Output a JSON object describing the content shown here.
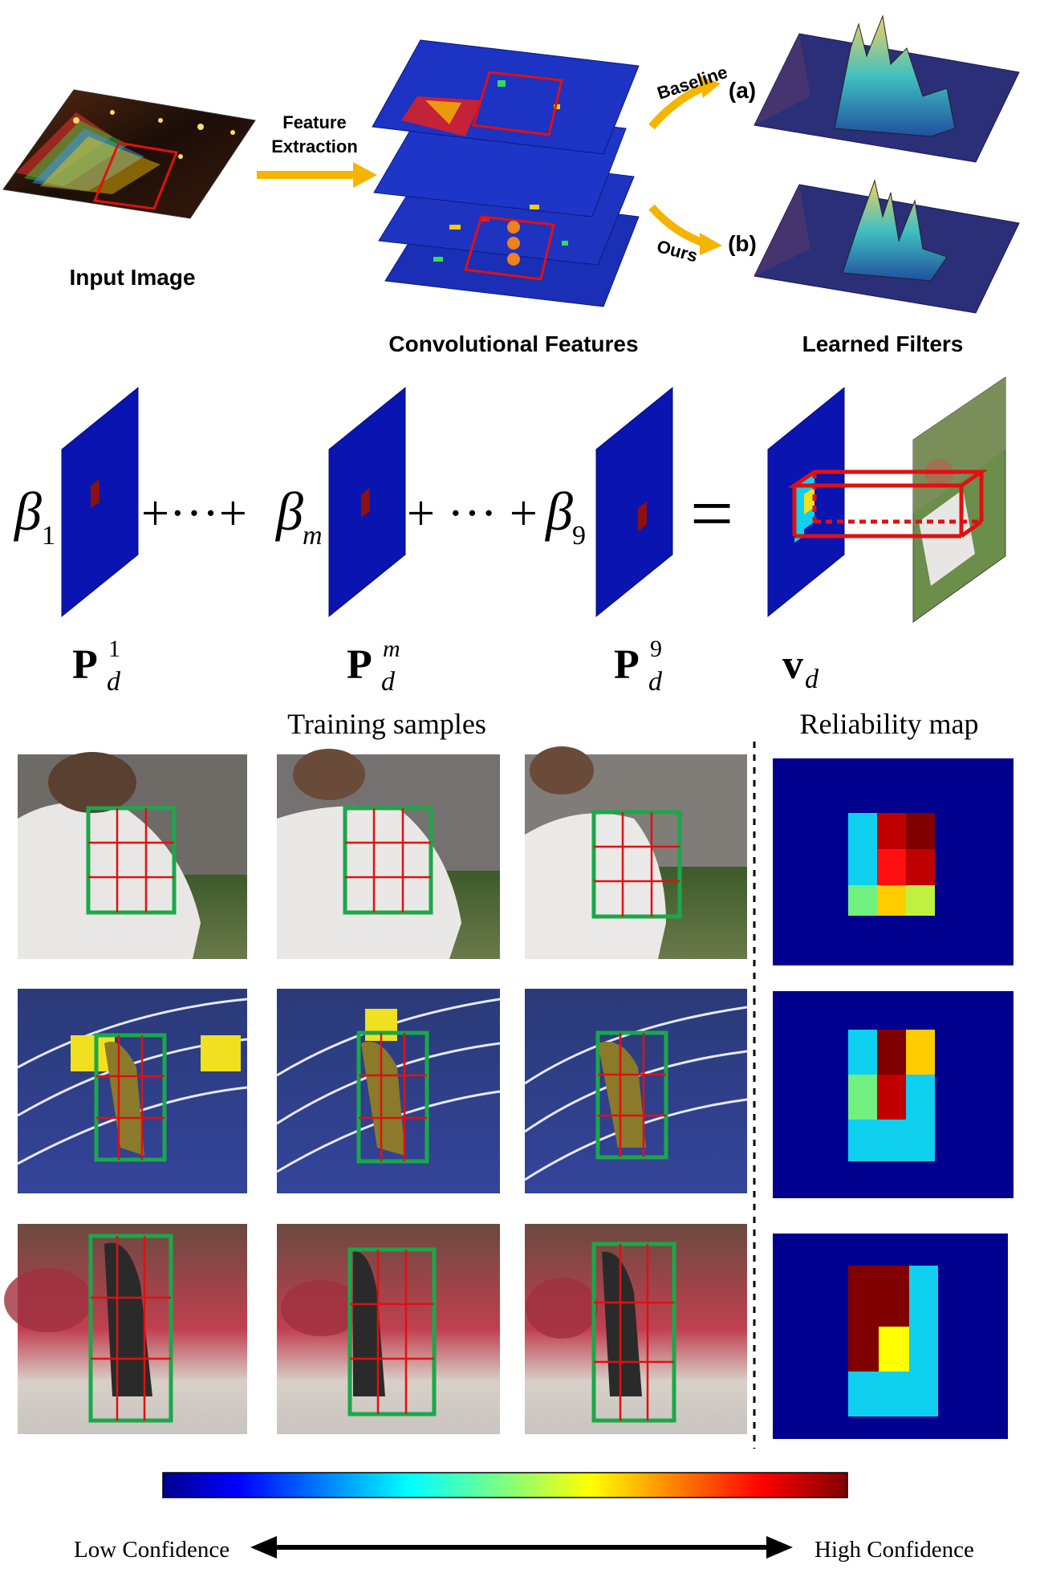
{
  "top": {
    "input_label": "Input Image",
    "feature_line1": "Feature",
    "feature_line2": "Extraction",
    "conv_label": "Convolutional Features",
    "filters_label": "Learned Filters",
    "baseline_label": "Baseline",
    "ours_label": "Ours",
    "a_label": "(a)",
    "b_label": "(b)"
  },
  "equation": {
    "beta1": "β",
    "beta1_sub": "1",
    "plus_dots_1": "+···+",
    "beta_m": "β",
    "beta_m_sub": "m",
    "plus_dots_2": "+ ··· +",
    "beta9": "β",
    "beta9_sub": "9",
    "equals": "=",
    "p1_main": "P",
    "p1_sup": "1",
    "p1_sub": "d",
    "pm_main": "P",
    "pm_sup": "m",
    "pm_sub": "d",
    "p9_main": "P",
    "p9_sup": "9",
    "p9_sub": "d",
    "v_main": "v",
    "v_sub": "d"
  },
  "samples": {
    "training_label": "Training samples",
    "reliability_label": "Reliability map"
  },
  "colorbar": {
    "low_label": "Low Confidence",
    "high_label": "High Confidence"
  },
  "colors": {
    "map_blue": "#00008f",
    "arrow_orange": "#f5b400",
    "box_green": "#1aa84a",
    "grid_red": "#e11010"
  }
}
